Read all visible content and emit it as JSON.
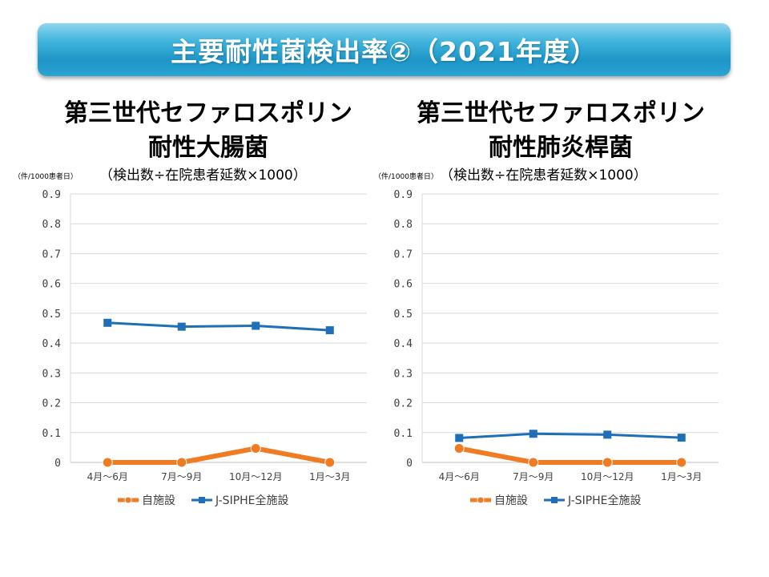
{
  "header": {
    "title": "主要耐性菌検出率②（2021年度）"
  },
  "chart_data": [
    {
      "type": "line",
      "title_lines": [
        "第三世代セファロスポリン",
        "耐性大腸菌"
      ],
      "unit_note": "（件/1000患者日）",
      "formula": "（検出数÷在院患者延数×1000）",
      "categories": [
        "4月～6月",
        "7月～9月",
        "10月～12月",
        "1月～3月"
      ],
      "yticks": [
        "0",
        "0.1",
        "0.2",
        "0.3",
        "0.4",
        "0.5",
        "0.6",
        "0.7",
        "0.8",
        "0.9"
      ],
      "ylim": [
        0,
        0.9
      ],
      "grid": true,
      "legend_position": "bottom",
      "series": [
        {
          "name": "自施設",
          "values": [
            0,
            0,
            0.047,
            0
          ],
          "color": "#f07b22",
          "marker": "circle"
        },
        {
          "name": "J-SIPHE全施設",
          "values": [
            0.468,
            0.455,
            0.458,
            0.443
          ],
          "color": "#1f6fb8",
          "marker": "square"
        }
      ]
    },
    {
      "type": "line",
      "title_lines": [
        "第三世代セファロスポリン",
        "耐性肺炎桿菌"
      ],
      "unit_note": "（件/1000患者日）",
      "formula": "（検出数÷在院患者延数×1000）",
      "categories": [
        "4月～6月",
        "7月～9月",
        "10月～12月",
        "1月～3月"
      ],
      "yticks": [
        "0",
        "0.1",
        "0.2",
        "0.3",
        "0.4",
        "0.5",
        "0.6",
        "0.7",
        "0.8",
        "0.9"
      ],
      "ylim": [
        0,
        0.9
      ],
      "grid": true,
      "legend_position": "bottom",
      "series": [
        {
          "name": "自施設",
          "values": [
            0.047,
            0,
            0,
            0
          ],
          "color": "#f07b22",
          "marker": "circle"
        },
        {
          "name": "J-SIPHE全施設",
          "values": [
            0.082,
            0.096,
            0.093,
            0.083
          ],
          "color": "#1f6fb8",
          "marker": "square"
        }
      ]
    }
  ]
}
